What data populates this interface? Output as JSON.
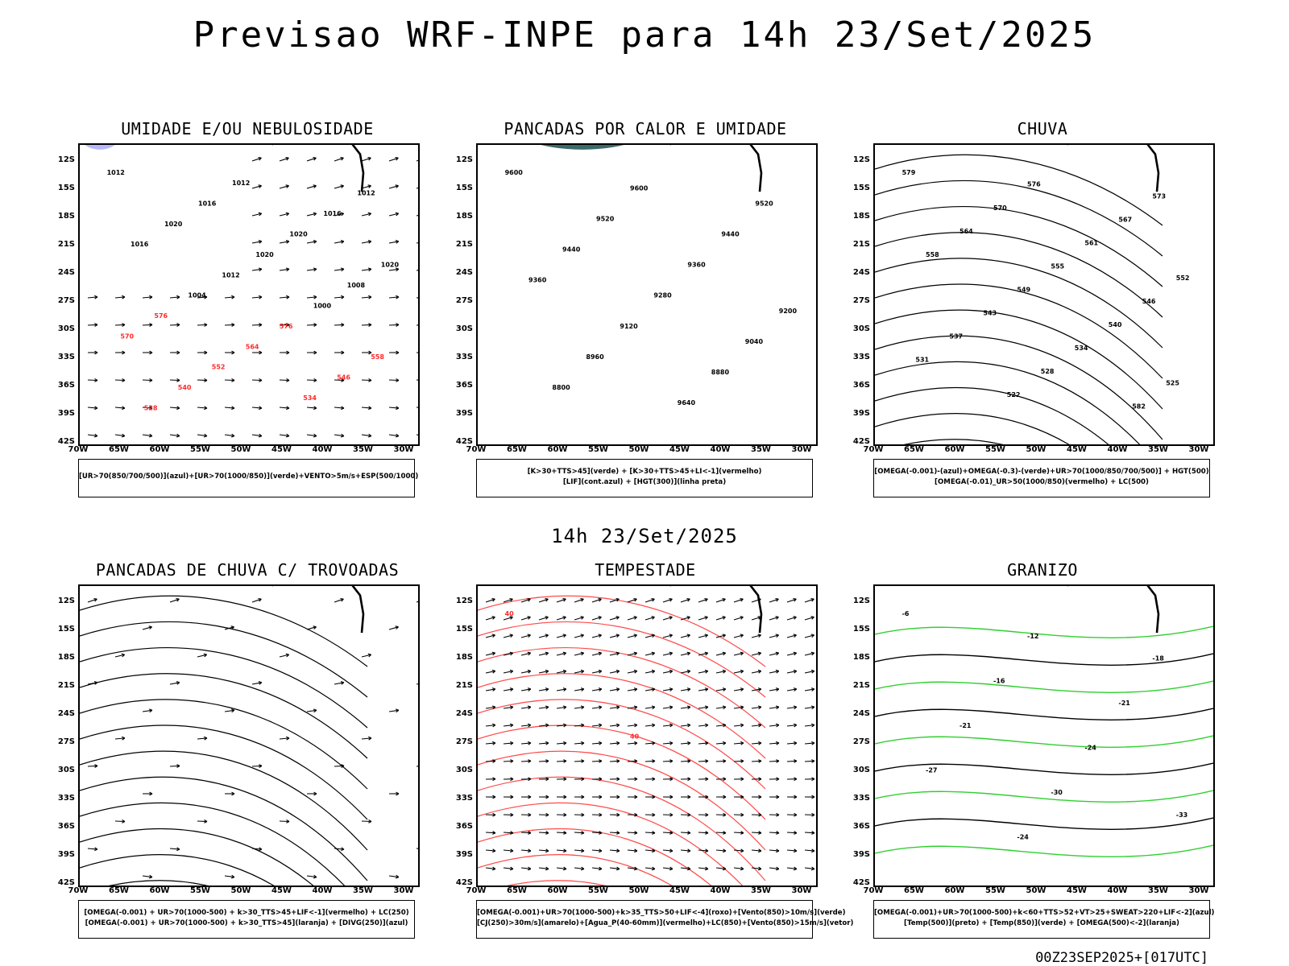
{
  "title": "Previsao WRF-INPE  para 14h 23/Set/2025",
  "mid_time": "14h 23/Set/2025",
  "run": "00Z23SEP2025+[017UTC]",
  "lat_ticks": [
    "12S",
    "15S",
    "18S",
    "21S",
    "24S",
    "27S",
    "30S",
    "33S",
    "36S",
    "39S",
    "42S"
  ],
  "lon_ticks": [
    "70W",
    "65W",
    "60W",
    "55W",
    "50W",
    "45W",
    "40W",
    "35W",
    "30W"
  ],
  "panels": [
    {
      "id": "umidade",
      "title": "UMIDADE E/OU NEBULOSIDADE",
      "legend": [
        "[UR>70(850/700/500)](azul)+[UR>70(1000/850)](verde)+VENTO>5m/s+ESP(500/1000)"
      ]
    },
    {
      "id": "pancadas-calor",
      "title": "PANCADAS POR CALOR E UMIDADE",
      "legend": [
        "[K>30+TTS>45](verde) + [K>30+TTS>45+LI<-1](vermelho)",
        "[LIF](cont.azul) + [HGT(300)](linha preta)"
      ]
    },
    {
      "id": "chuva",
      "title": "CHUVA",
      "legend": [
        "[OMEGA(-0.001)-(azul)+OMEGA(-0.3)-(verde)+UR>70(1000/850/700/500)] + HGT(500)",
        "[OMEGA(-0.01)_UR>50(1000/850)(vermelho) + LC(500)"
      ]
    },
    {
      "id": "pancadas-trovoadas",
      "title": "PANCADAS DE CHUVA C/ TROVOADAS",
      "legend": [
        "[OMEGA(-0.001) + UR>70(1000-500) + k>30_TTS>45+LIF<-1](vermelho) + LC(250)",
        "[OMEGA(-0.001) + UR>70(1000-500) + k>30_TTS>45](laranja) + [DIVG(250)](azul)"
      ]
    },
    {
      "id": "tempestade",
      "title": "TEMPESTADE",
      "legend": [
        "[OMEGA(-0.001)+UR>70(1000-500)+k>35_TTS>50+LIF<-4](roxo)+[Vento(850)>10m/s](verde)",
        "[CJ(250)>30m/s](amarelo)+[Agua_P(40-60mm)](vermelho)+LC(850)+[Vento(850)>15m/s](vetor)"
      ]
    },
    {
      "id": "granizo",
      "title": "GRANIZO",
      "legend": [
        "[OMEGA(-0.001)+UR>70(1000-500)+k<60+TTS>52+VT>25+SWEAT>220+LIF<-2](azul)",
        "[Temp(500)](preto) + [Temp(850)](verde) + [OMEGA(500)<-2](laranja)"
      ]
    }
  ],
  "contour_labels": {
    "umidade": [
      "1012",
      "1012",
      "1012",
      "1016",
      "1016",
      "1020",
      "1020",
      "1016",
      "1020",
      "1020",
      "1012",
      "1008",
      "1004",
      "1000",
      "576",
      "576",
      "570",
      "564",
      "558",
      "552",
      "546",
      "540",
      "534",
      "528"
    ],
    "pancadas-calor": [
      "9600",
      "9600",
      "9520",
      "9520",
      "9440",
      "9440",
      "9360",
      "9360",
      "9280",
      "9200",
      "9120",
      "9040",
      "8960",
      "8880",
      "8800",
      "9640"
    ],
    "chuva": [
      "579",
      "576",
      "573",
      "570",
      "567",
      "564",
      "561",
      "558",
      "555",
      "552",
      "549",
      "546",
      "543",
      "540",
      "537",
      "534",
      "531",
      "528",
      "525",
      "522",
      "582"
    ],
    "tempestade": [
      "40",
      "40"
    ],
    "granizo": [
      "-6",
      "-12",
      "-18",
      "-16",
      "-21",
      "-21",
      "-24",
      "-27",
      "-30",
      "-33",
      "-24"
    ]
  }
}
